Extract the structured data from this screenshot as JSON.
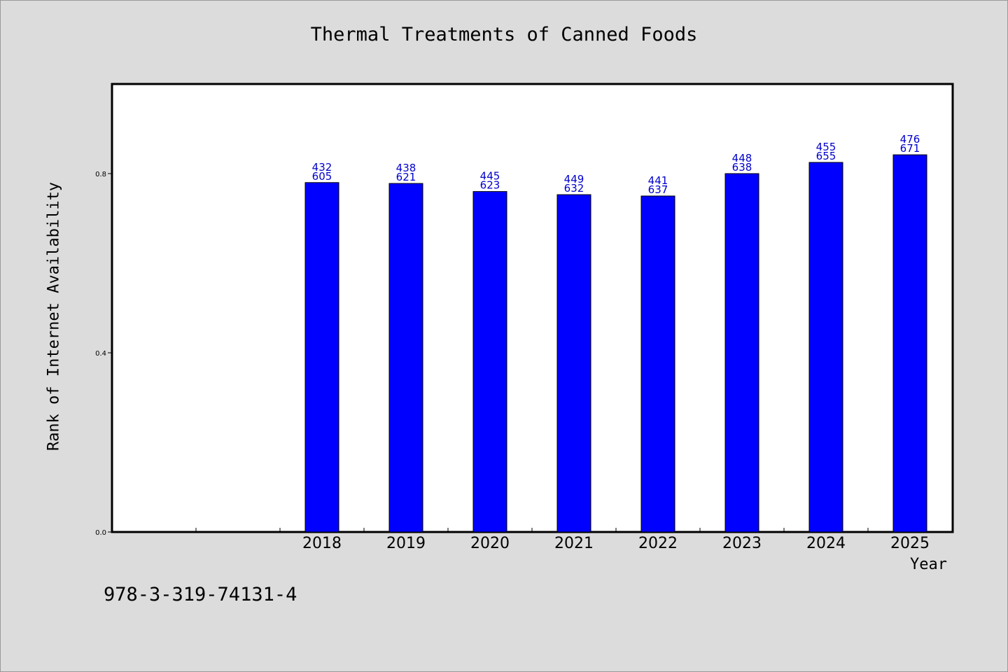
{
  "chart_data": {
    "type": "bar",
    "title": "Thermal Treatments of Canned Foods",
    "xlabel": "Year",
    "ylabel": "Rank of Internet Availability",
    "categories": [
      "2018",
      "2019",
      "2020",
      "2021",
      "2022",
      "2023",
      "2024",
      "2025"
    ],
    "values": [
      0.78,
      0.778,
      0.76,
      0.753,
      0.75,
      0.8,
      0.825,
      0.842
    ],
    "bar_labels_top": [
      "432",
      "438",
      "445",
      "449",
      "441",
      "448",
      "455",
      "476"
    ],
    "bar_labels_bottom": [
      "605",
      "621",
      "623",
      "632",
      "637",
      "638",
      "655",
      "671"
    ],
    "ylim": [
      0,
      1.0
    ],
    "yticks": [
      0.0,
      0.4,
      0.8
    ],
    "ytick_labels": [
      "0.0",
      "0.4",
      "0.8"
    ],
    "bar_color": "#0000ff",
    "label_color": "#0000cc",
    "grid": false,
    "legend": "none"
  },
  "footer_code": "978-3-319-74131-4"
}
